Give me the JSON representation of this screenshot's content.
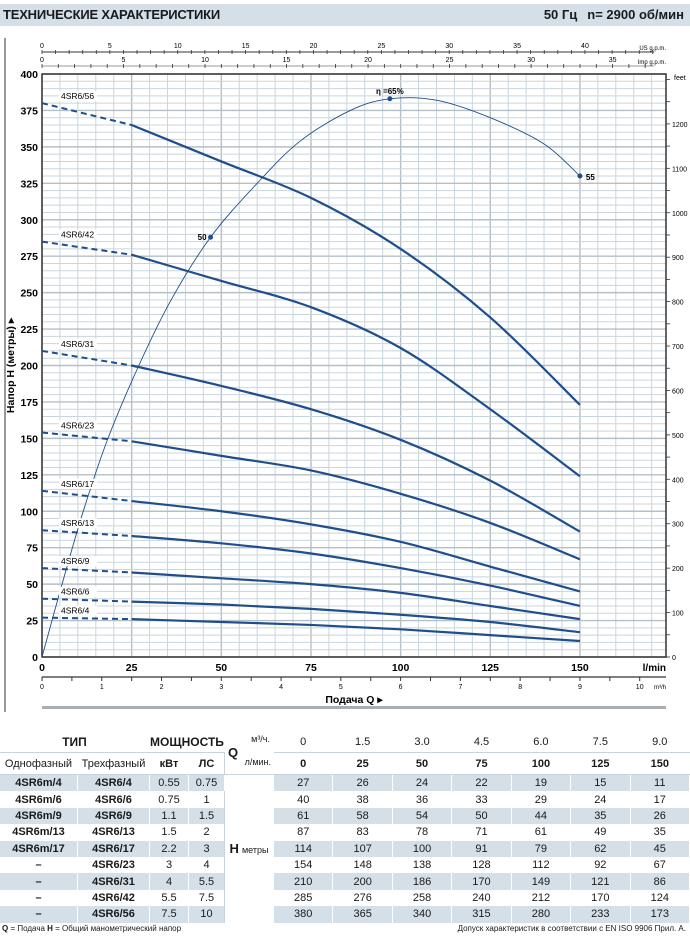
{
  "header": {
    "title": "ТЕХНИЧЕСКИЕ ХАРАКТЕРИСТИКИ",
    "frequency": "50 Гц",
    "speed": "n= 2900 об/мин"
  },
  "chart_data": {
    "type": "line",
    "xlabel": "Подача Q ▸",
    "ylabel": "Напор H (метры) ▸",
    "x_unit": "l/min",
    "xlim": [
      0,
      174
    ],
    "ylim": [
      0,
      400
    ],
    "x_ticks": [
      0,
      25,
      50,
      75,
      100,
      125,
      150
    ],
    "y_ticks": [
      0,
      25,
      50,
      75,
      100,
      125,
      150,
      175,
      200,
      225,
      250,
      275,
      300,
      325,
      350,
      375,
      400
    ],
    "grid": true,
    "secondary_axes": {
      "us_gpm": {
        "label": "US g.p.m.",
        "ticks": [
          0,
          5,
          10,
          15,
          20,
          25,
          30,
          35,
          40
        ],
        "minor_step": 1
      },
      "imp_gpm": {
        "label": "Imp g.p.m.",
        "ticks": [
          0,
          5,
          10,
          15,
          20,
          25,
          30,
          35
        ],
        "minor_step": 1
      },
      "feet": {
        "label": "feet",
        "ticks": [
          0,
          100,
          200,
          300,
          400,
          500,
          600,
          700,
          800,
          900,
          1000,
          1100,
          1200
        ],
        "minor_step": 50
      },
      "m3h": {
        "label": "m³/h",
        "ticks": [
          0,
          1,
          2,
          3,
          4,
          5,
          6,
          7,
          8,
          9,
          10
        ],
        "minor_step": 0.5
      }
    },
    "x": [
      0,
      25,
      50,
      75,
      100,
      125,
      150
    ],
    "dashed_until": 25,
    "series": [
      {
        "name": "4SR6/4",
        "values": [
          27,
          26,
          24,
          22,
          19,
          15,
          11
        ]
      },
      {
        "name": "4SR6/6",
        "values": [
          40,
          38,
          36,
          33,
          29,
          24,
          17
        ]
      },
      {
        "name": "4SR6/9",
        "values": [
          61,
          58,
          54,
          50,
          44,
          35,
          26
        ]
      },
      {
        "name": "4SR6/13",
        "values": [
          87,
          83,
          78,
          71,
          61,
          49,
          35
        ]
      },
      {
        "name": "4SR6/17",
        "values": [
          114,
          107,
          100,
          91,
          79,
          62,
          45
        ]
      },
      {
        "name": "4SR6/23",
        "values": [
          154,
          148,
          138,
          128,
          112,
          92,
          67
        ]
      },
      {
        "name": "4SR6/31",
        "values": [
          210,
          200,
          186,
          170,
          149,
          121,
          86
        ]
      },
      {
        "name": "4SR6/42",
        "values": [
          285,
          276,
          258,
          240,
          212,
          170,
          124
        ]
      },
      {
        "name": "4SR6/56",
        "values": [
          380,
          365,
          340,
          315,
          280,
          233,
          173
        ]
      }
    ],
    "efficiency_curve": {
      "points": [
        [
          0,
          0
        ],
        [
          5.6,
          50
        ],
        [
          11.5,
          100
        ],
        [
          18.4,
          150
        ],
        [
          27,
          200
        ],
        [
          36,
          245
        ],
        [
          47,
          288
        ],
        [
          60,
          325
        ],
        [
          72,
          354
        ],
        [
          86,
          375
        ],
        [
          97,
          383
        ],
        [
          110,
          382
        ],
        [
          125,
          370
        ],
        [
          140,
          352
        ],
        [
          150,
          330
        ]
      ],
      "markers": [
        {
          "q": 47,
          "h": 288,
          "label": "50"
        },
        {
          "q": 97,
          "h": 383,
          "label": "η =65%"
        },
        {
          "q": 150,
          "h": 330,
          "label": "55"
        }
      ]
    },
    "colors": {
      "curve": "#1f4e8c",
      "grid": "#c9d5de",
      "grid_major": "#b5bfc7"
    }
  },
  "table": {
    "type_header": "ТИП",
    "power_header": "МОЩНОСТЬ",
    "single_phase": "Однофазный",
    "three_phase": "Трехфазный",
    "kw": "кВт",
    "hp": "ЛС",
    "q_symbol": "Q",
    "q_unit_m3h": "м³/ч.",
    "q_unit_lmin": "л/мин.",
    "h_symbol": "H",
    "h_unit": "метры",
    "q_m3h": [
      "0",
      "1.5",
      "3.0",
      "4.5",
      "6.0",
      "7.5",
      "9.0"
    ],
    "q_lmin": [
      "0",
      "25",
      "50",
      "75",
      "100",
      "125",
      "150"
    ],
    "rows": [
      {
        "single": "4SR6m/4",
        "three": "4SR6/4",
        "kw": "0.55",
        "hp": "0.75",
        "h": [
          "27",
          "26",
          "24",
          "22",
          "19",
          "15",
          "11"
        ]
      },
      {
        "single": "4SR6m/6",
        "three": "4SR6/6",
        "kw": "0.75",
        "hp": "1",
        "h": [
          "40",
          "38",
          "36",
          "33",
          "29",
          "24",
          "17"
        ]
      },
      {
        "single": "4SR6m/9",
        "three": "4SR6/9",
        "kw": "1.1",
        "hp": "1.5",
        "h": [
          "61",
          "58",
          "54",
          "50",
          "44",
          "35",
          "26"
        ]
      },
      {
        "single": "4SR6m/13",
        "three": "4SR6/13",
        "kw": "1.5",
        "hp": "2",
        "h": [
          "87",
          "83",
          "78",
          "71",
          "61",
          "49",
          "35"
        ]
      },
      {
        "single": "4SR6m/17",
        "three": "4SR6/17",
        "kw": "2.2",
        "hp": "3",
        "h": [
          "114",
          "107",
          "100",
          "91",
          "79",
          "62",
          "45"
        ]
      },
      {
        "single": "–",
        "three": "4SR6/23",
        "kw": "3",
        "hp": "4",
        "h": [
          "154",
          "148",
          "138",
          "128",
          "112",
          "92",
          "67"
        ]
      },
      {
        "single": "–",
        "three": "4SR6/31",
        "kw": "4",
        "hp": "5.5",
        "h": [
          "210",
          "200",
          "186",
          "170",
          "149",
          "121",
          "86"
        ]
      },
      {
        "single": "–",
        "three": "4SR6/42",
        "kw": "5.5",
        "hp": "7.5",
        "h": [
          "285",
          "276",
          "258",
          "240",
          "212",
          "170",
          "124"
        ]
      },
      {
        "single": "–",
        "three": "4SR6/56",
        "kw": "7.5",
        "hp": "10",
        "h": [
          "380",
          "365",
          "340",
          "315",
          "280",
          "233",
          "173"
        ]
      }
    ]
  },
  "footer": {
    "legend_q": "Q",
    "legend_q_text": " = Подача  ",
    "legend_h": "H",
    "legend_h_text": " = Общий манометрический напор",
    "tolerance": "Допуск характеристик в соответствии с EN ISO 9906 Прил. A."
  }
}
